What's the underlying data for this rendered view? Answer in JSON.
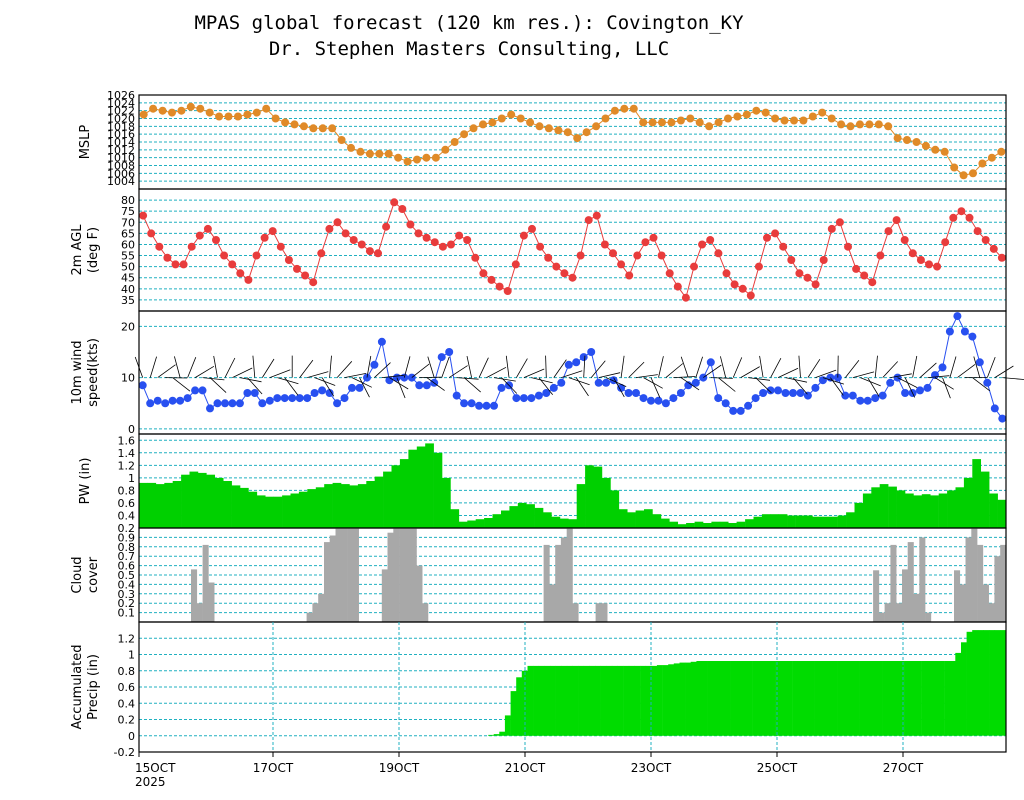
{
  "title": {
    "line1": "MPAS global forecast (120 km res.): Covington_KY",
    "line2": "Dr. Stephen Masters Consulting, LLC"
  },
  "colors": {
    "grid": "#20b0c0",
    "mslp": "#e08a28",
    "temp": "#e83c3c",
    "wind": "#2850f0",
    "pw": "#00d000",
    "cloud": "#a8a8a8",
    "precip": "#00dc00"
  },
  "chart_data": [
    {
      "type": "line",
      "key": "mslp",
      "ylabel": [
        "MSLP"
      ],
      "ylim": [
        1002,
        1026
      ],
      "ticks": [
        "1004",
        "1006",
        "1008",
        "1010",
        "1012",
        "1014",
        "1016",
        "1018",
        "1020",
        "1022",
        "1024",
        "1026"
      ],
      "values": [
        1021,
        1022.5,
        1022,
        1021.5,
        1022,
        1023,
        1022.5,
        1021.5,
        1020.5,
        1020.5,
        1020.5,
        1021,
        1021.5,
        1022.5,
        1020,
        1019,
        1018.5,
        1018,
        1017.5,
        1017.5,
        1017.5,
        1014.5,
        1012.5,
        1011.5,
        1011,
        1011,
        1011,
        1010,
        1009,
        1009.5,
        1010,
        1010,
        1012,
        1014,
        1016,
        1017.5,
        1018.5,
        1019,
        1020,
        1021,
        1020,
        1019,
        1018,
        1017.5,
        1017,
        1016.5,
        1015,
        1016.5,
        1018,
        1020,
        1022,
        1022.5,
        1022.5,
        1019,
        1019,
        1019,
        1019,
        1019.5,
        1020,
        1019,
        1018,
        1019,
        1020,
        1020.5,
        1021,
        1022,
        1021.5,
        1020,
        1019.5,
        1019.5,
        1019.5,
        1020.5,
        1021.5,
        1020,
        1018.5,
        1018,
        1018.5,
        1018.5,
        1018.5,
        1018,
        1015,
        1014.5,
        1014,
        1013,
        1012,
        1011.5,
        1007.5,
        1005.5,
        1006,
        1008.5,
        1010,
        1011.5
      ]
    },
    {
      "type": "line",
      "key": "temp",
      "ylabel": [
        "2m AGL",
        "(deg F)"
      ],
      "ylim": [
        30,
        85
      ],
      "ticks": [
        "35",
        "40",
        "45",
        "50",
        "55",
        "60",
        "65",
        "70",
        "75",
        "80"
      ],
      "values": [
        73,
        65,
        59,
        54,
        51,
        51,
        59,
        64,
        67,
        62,
        55,
        51,
        47,
        44,
        55,
        63,
        66,
        59,
        53,
        49,
        46,
        43,
        56,
        67,
        70,
        65,
        62,
        60,
        57,
        56,
        68,
        79,
        76,
        69,
        65,
        63,
        61,
        59,
        60,
        64,
        62,
        54,
        47,
        44,
        41,
        39,
        51,
        64,
        67,
        59,
        54,
        50,
        47,
        45,
        55,
        71,
        73,
        60,
        56,
        51,
        46,
        55,
        61,
        63,
        55,
        47,
        41,
        36,
        50,
        60,
        62,
        56,
        47,
        42,
        40,
        37,
        50,
        63,
        65,
        59,
        53,
        47,
        45,
        42,
        53,
        67,
        70,
        59,
        49,
        46,
        43,
        55,
        66,
        71,
        62,
        56,
        53,
        51,
        50,
        61,
        72,
        75,
        72,
        66,
        62,
        58,
        54
      ]
    },
    {
      "type": "line",
      "key": "wind",
      "ylabel": [
        "10m wind",
        "speed(kts)"
      ],
      "ylim": [
        -1,
        23
      ],
      "ticks": [
        "0",
        "10",
        "20"
      ],
      "values": [
        8.5,
        5,
        5.5,
        5,
        5.5,
        5.5,
        6,
        7.5,
        7.5,
        4,
        5,
        5,
        5,
        5,
        7,
        7,
        5,
        5.5,
        6,
        6,
        6,
        6,
        6,
        7,
        7.5,
        7,
        5,
        6,
        8,
        8,
        10,
        12.5,
        17,
        9.5,
        10,
        10,
        10,
        8.5,
        8.5,
        9,
        14,
        15,
        6.5,
        5,
        5,
        4.5,
        4.5,
        4.5,
        8,
        8.5,
        6,
        6,
        6,
        6.5,
        7,
        8,
        9,
        12.5,
        13,
        14,
        15,
        9,
        9,
        9.5,
        8,
        7,
        7,
        6,
        5.5,
        5.5,
        5,
        6,
        7,
        8.5,
        9,
        10,
        13,
        6,
        5,
        3.5,
        3.5,
        4.5,
        6,
        7,
        7.5,
        7.5,
        7,
        7,
        7,
        6.5,
        8,
        9.5,
        10,
        10,
        6.5,
        6.5,
        5.5,
        5.5,
        6,
        6.5,
        9,
        10,
        7,
        7,
        7.5,
        8,
        10.5,
        12,
        19,
        22,
        19,
        18,
        13,
        9,
        4,
        2
      ]
    },
    {
      "type": "area",
      "key": "pw",
      "ylabel": [
        "PW (in)"
      ],
      "ylim": [
        0.2,
        1.7
      ],
      "ticks": [
        "0.2",
        "0.4",
        "0.6",
        "0.8",
        "1",
        "1.2",
        "1.4",
        "1.6"
      ],
      "values": [
        0.92,
        0.92,
        0.9,
        0.92,
        0.95,
        1.05,
        1.1,
        1.08,
        1.05,
        1.0,
        0.95,
        0.88,
        0.84,
        0.78,
        0.72,
        0.7,
        0.7,
        0.72,
        0.75,
        0.78,
        0.82,
        0.85,
        0.9,
        0.92,
        0.9,
        0.88,
        0.9,
        0.95,
        1.02,
        1.1,
        1.2,
        1.3,
        1.45,
        1.5,
        1.55,
        1.4,
        1.0,
        0.5,
        0.3,
        0.32,
        0.34,
        0.36,
        0.42,
        0.48,
        0.55,
        0.6,
        0.58,
        0.52,
        0.45,
        0.38,
        0.35,
        0.34,
        0.9,
        1.2,
        1.18,
        1.0,
        0.8,
        0.5,
        0.45,
        0.48,
        0.5,
        0.42,
        0.35,
        0.3,
        0.26,
        0.28,
        0.3,
        0.28,
        0.3,
        0.3,
        0.28,
        0.3,
        0.34,
        0.38,
        0.42,
        0.42,
        0.42,
        0.4,
        0.4,
        0.4,
        0.38,
        0.38,
        0.38,
        0.4,
        0.45,
        0.6,
        0.75,
        0.85,
        0.9,
        0.86,
        0.8,
        0.75,
        0.72,
        0.74,
        0.72,
        0.75,
        0.8,
        0.85,
        1.0,
        1.3,
        1.1,
        0.75,
        0.65
      ]
    },
    {
      "type": "bar",
      "key": "cloud",
      "ylabel": [
        "Cloud",
        "cover"
      ],
      "ylim": [
        0,
        1
      ],
      "ticks": [
        "0.1",
        "0.2",
        "0.3",
        "0.4",
        "0.5",
        "0.6",
        "0.7",
        "0.8",
        "0.9"
      ],
      "values": [
        0,
        0,
        0,
        0,
        0,
        0,
        0,
        0,
        0,
        0.56,
        0.2,
        0.82,
        0.42,
        0,
        0,
        0,
        0,
        0,
        0,
        0,
        0,
        0,
        0,
        0,
        0,
        0,
        0,
        0,
        0,
        0.1,
        0.2,
        0.3,
        0.85,
        0.92,
        1,
        1,
        1,
        1,
        0,
        0,
        0,
        0,
        0.56,
        0.95,
        1,
        1,
        1,
        1,
        0.6,
        0.2,
        0,
        0,
        0,
        0,
        0,
        0,
        0,
        0,
        0,
        0,
        0,
        0,
        0,
        0,
        0,
        0,
        0,
        0,
        0,
        0,
        0.82,
        0.4,
        0.82,
        0.9,
        1,
        0.2,
        0,
        0,
        0,
        0.2,
        0.2,
        0,
        0,
        0,
        0,
        0,
        0,
        0,
        0,
        0,
        0,
        0,
        0,
        0,
        0,
        0,
        0,
        0,
        0,
        0,
        0,
        0,
        0,
        0,
        0,
        0,
        0,
        0,
        0,
        0,
        0,
        0,
        0,
        0,
        0,
        0,
        0,
        0,
        0,
        0,
        0,
        0,
        0,
        0,
        0,
        0,
        0,
        0.55,
        0.1,
        0.2,
        0.82,
        0.2,
        0.56,
        0.85,
        0.3,
        0.9,
        0.1,
        0,
        0,
        0,
        0,
        0.55,
        0.4,
        0.9,
        1,
        0.82,
        0.4,
        0.2,
        0.7,
        0.82
      ]
    },
    {
      "type": "area",
      "key": "precip",
      "ylabel": [
        "Accumulated",
        "Precip (in)"
      ],
      "ylim": [
        -0.2,
        1.4
      ],
      "ticks": [
        "-0.2",
        "0",
        "0.2",
        "0.4",
        "0.6",
        "0.8",
        "1",
        "1.2"
      ],
      "values": [
        0,
        0,
        0,
        0,
        0,
        0,
        0,
        0,
        0,
        0,
        0,
        0,
        0,
        0,
        0,
        0,
        0,
        0,
        0,
        0,
        0,
        0,
        0,
        0,
        0,
        0,
        0,
        0,
        0,
        0,
        0,
        0,
        0,
        0,
        0,
        0,
        0,
        0,
        0,
        0,
        0,
        0,
        0,
        0,
        0,
        0,
        0,
        0,
        0,
        0,
        0,
        0,
        0,
        0,
        0,
        0,
        0,
        0,
        0,
        0,
        0,
        0,
        0.01,
        0.02,
        0.05,
        0.25,
        0.55,
        0.72,
        0.8,
        0.86,
        0.86,
        0.86,
        0.86,
        0.86,
        0.86,
        0.86,
        0.86,
        0.86,
        0.86,
        0.86,
        0.86,
        0.86,
        0.86,
        0.86,
        0.86,
        0.86,
        0.86,
        0.86,
        0.86,
        0.86,
        0.86,
        0.86,
        0.87,
        0.87,
        0.88,
        0.89,
        0.9,
        0.9,
        0.91,
        0.92,
        0.92,
        0.92,
        0.92,
        0.92,
        0.92,
        0.92,
        0.92,
        0.92,
        0.92,
        0.92,
        0.92,
        0.92,
        0.92,
        0.92,
        0.92,
        0.92,
        0.92,
        0.92,
        0.92,
        0.92,
        0.92,
        0.92,
        0.92,
        0.92,
        0.92,
        0.92,
        0.92,
        0.92,
        0.92,
        0.92,
        0.92,
        0.92,
        0.92,
        0.92,
        0.92,
        0.92,
        0.92,
        0.92,
        0.92,
        0.92,
        0.92,
        0.92,
        0.92,
        0.92,
        0.92,
        1.02,
        1.15,
        1.28,
        1.3,
        1.3,
        1.3,
        1.3,
        1.3,
        1.3
      ]
    }
  ],
  "x_axis": {
    "ticks": [
      "15OCT",
      "17OCT",
      "19OCT",
      "21OCT",
      "23OCT",
      "25OCT",
      "27OCT"
    ],
    "year": "2025"
  }
}
